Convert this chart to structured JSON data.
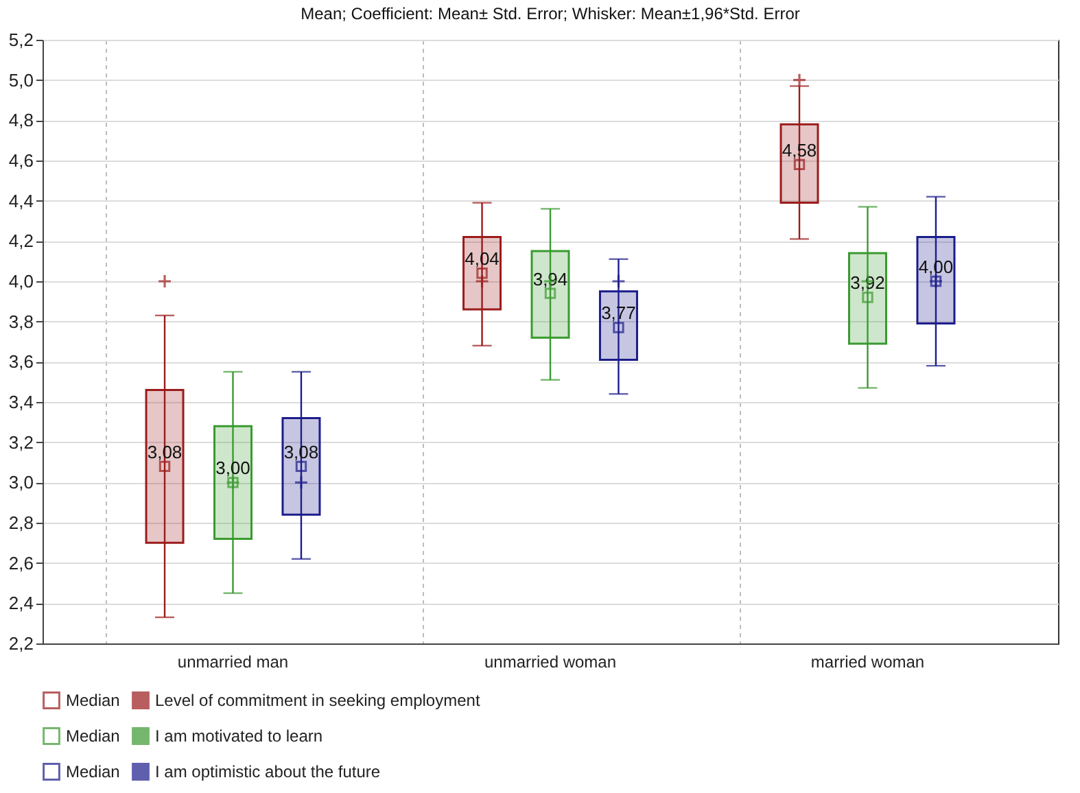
{
  "chart_data": {
    "type": "box",
    "title": "Mean; Coefficient: Mean± Std. Error; Whisker: Mean±1,96*Std. Error",
    "categories": [
      "unmarried man",
      "unmarried woman",
      "married woman"
    ],
    "ylim": [
      2.2,
      5.2
    ],
    "yticks": [
      {
        "value": 2.2,
        "label": "2,2"
      },
      {
        "value": 2.4,
        "label": "2,4"
      },
      {
        "value": 2.6,
        "label": "2,6"
      },
      {
        "value": 2.8,
        "label": "2,8"
      },
      {
        "value": 3.0,
        "label": "3,0"
      },
      {
        "value": 3.2,
        "label": "3,2"
      },
      {
        "value": 3.4,
        "label": "3,4"
      },
      {
        "value": 3.6,
        "label": "3,6"
      },
      {
        "value": 3.8,
        "label": "3,8"
      },
      {
        "value": 4.0,
        "label": "4,0"
      },
      {
        "value": 4.2,
        "label": "4,2"
      },
      {
        "value": 4.4,
        "label": "4,4"
      },
      {
        "value": 4.6,
        "label": "4,6"
      },
      {
        "value": 4.8,
        "label": "4,8"
      },
      {
        "value": 5.0,
        "label": "5,0"
      },
      {
        "value": 5.2,
        "label": "5,2"
      }
    ],
    "grid": true,
    "legend": "bottom",
    "annotations": [
      "Median"
    ],
    "series": [
      {
        "name": "Level of commitment in seeking employment",
        "color": "#9b1b1b",
        "boxes": [
          {
            "low": 2.33,
            "q1": 2.7,
            "median": 4.0,
            "q3": 3.46,
            "high": 3.83,
            "mean": 3.08
          },
          {
            "low": 3.68,
            "q1": 3.86,
            "median": 4.0,
            "q3": 4.22,
            "high": 4.39,
            "mean": 4.04
          },
          {
            "low": 4.21,
            "q1": 4.39,
            "median": 5.0,
            "q3": 4.78,
            "high": 4.97,
            "mean": 4.58
          }
        ],
        "value_labels": [
          "3,08",
          "4,04",
          "4,58"
        ]
      },
      {
        "name": "I am motivated to learn",
        "color": "#3a9a30",
        "boxes": [
          {
            "low": 2.45,
            "q1": 2.72,
            "median": 3.0,
            "q3": 3.28,
            "high": 3.55,
            "mean": 3.0
          },
          {
            "low": 3.51,
            "q1": 3.72,
            "median": 4.0,
            "q3": 4.15,
            "high": 4.36,
            "mean": 3.94
          },
          {
            "low": 3.47,
            "q1": 3.69,
            "median": 4.0,
            "q3": 4.14,
            "high": 4.37,
            "mean": 3.92
          }
        ],
        "value_labels": [
          "3,00",
          "3,94",
          "3,92"
        ]
      },
      {
        "name": "I am optimistic about the future",
        "color": "#1c1c8c",
        "boxes": [
          {
            "low": 2.62,
            "q1": 2.84,
            "median": 3.0,
            "q3": 3.32,
            "high": 3.55,
            "mean": 3.08
          },
          {
            "low": 3.44,
            "q1": 3.61,
            "median": 4.0,
            "q3": 3.95,
            "high": 4.11,
            "mean": 3.77
          },
          {
            "low": 3.58,
            "q1": 3.79,
            "median": 4.0,
            "q3": 4.22,
            "high": 4.42,
            "mean": 4.0
          }
        ],
        "value_labels": [
          "3,08",
          "3,77",
          "4,00"
        ]
      }
    ]
  }
}
